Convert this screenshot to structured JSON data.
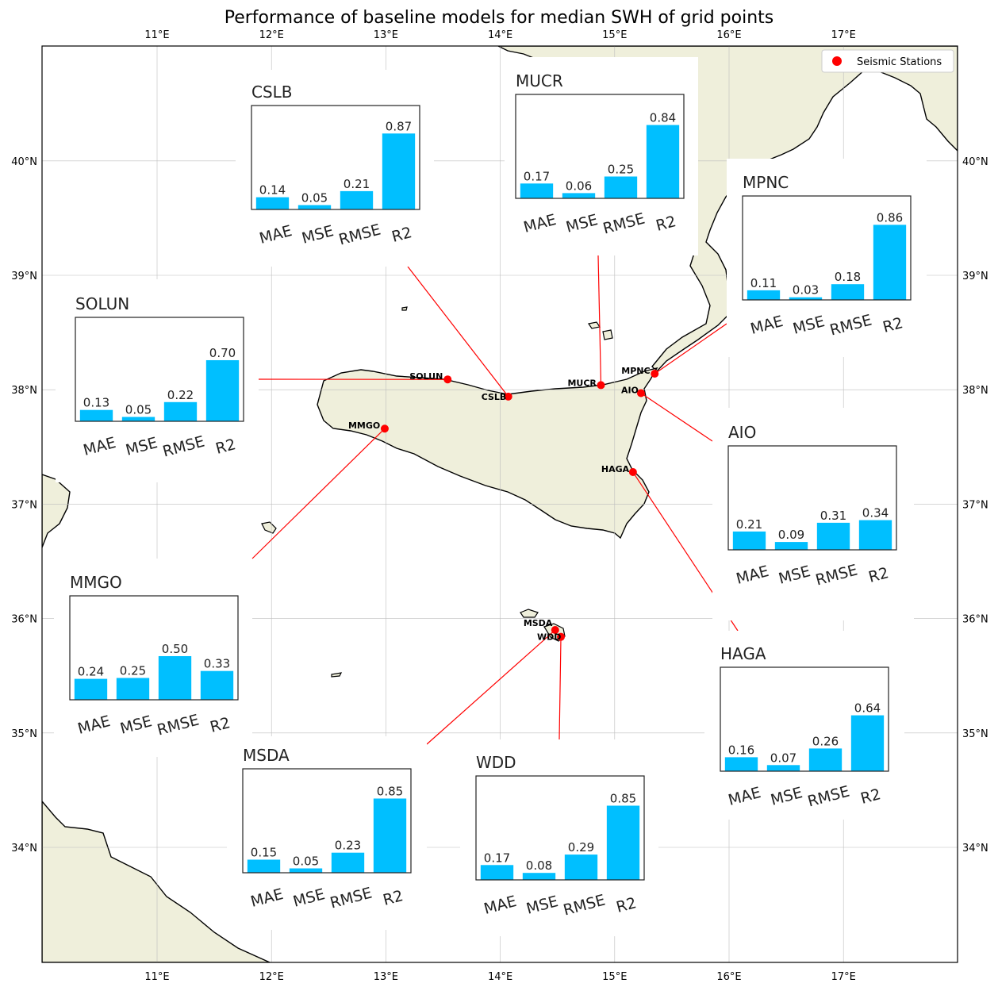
{
  "title": "Performance of baseline models for median SWH of grid points",
  "map": {
    "lon_ticks": [
      "11°E",
      "12°E",
      "13°E",
      "14°E",
      "15°E",
      "16°E",
      "17°E"
    ],
    "lat_ticks": [
      "34°N",
      "35°N",
      "36°N",
      "37°N",
      "38°N",
      "39°N",
      "40°N"
    ],
    "colors": {
      "land": "#efefdb",
      "coast": "#000000",
      "station": "#ff0000",
      "leader": "#ff0000"
    }
  },
  "legend": {
    "label": "Seismic Stations",
    "placement": "top-right"
  },
  "stations": [
    {
      "name": "SOLUN",
      "lon": 13.54,
      "lat": 38.09
    },
    {
      "name": "CSLB",
      "lon": 14.07,
      "lat": 37.94
    },
    {
      "name": "MUCR",
      "lon": 14.88,
      "lat": 38.04
    },
    {
      "name": "MPNC",
      "lon": 15.35,
      "lat": 38.14
    },
    {
      "name": "AIO",
      "lon": 15.23,
      "lat": 37.97
    },
    {
      "name": "MMGO",
      "lon": 12.99,
      "lat": 37.66
    },
    {
      "name": "HAGA",
      "lon": 15.16,
      "lat": 37.28
    },
    {
      "name": "MSDA",
      "lon": 14.48,
      "lat": 35.9
    },
    {
      "name": "WDD",
      "lon": 14.53,
      "lat": 35.84
    }
  ],
  "chart_data": {
    "type": "bar",
    "bar_color": "#00bfff",
    "categories": [
      "MAE",
      "MSE",
      "RMSE",
      "R2"
    ],
    "ylim": [
      0,
      1
    ],
    "panels": [
      {
        "station": "CSLB",
        "values": [
          0.14,
          0.05,
          0.21,
          0.87
        ],
        "labels": [
          "0.14",
          "0.05",
          "0.21",
          "0.87"
        ]
      },
      {
        "station": "MUCR",
        "values": [
          0.17,
          0.06,
          0.25,
          0.84
        ],
        "labels": [
          "0.17",
          "0.06",
          "0.25",
          "0.84"
        ]
      },
      {
        "station": "MPNC",
        "values": [
          0.11,
          0.03,
          0.18,
          0.86
        ],
        "labels": [
          "0.11",
          "0.03",
          "0.18",
          "0.86"
        ]
      },
      {
        "station": "SOLUN",
        "values": [
          0.13,
          0.05,
          0.22,
          0.7
        ],
        "labels": [
          "0.13",
          "0.05",
          "0.22",
          "0.70"
        ]
      },
      {
        "station": "AIO",
        "values": [
          0.21,
          0.09,
          0.31,
          0.34
        ],
        "labels": [
          "0.21",
          "0.09",
          "0.31",
          "0.34"
        ]
      },
      {
        "station": "MMGO",
        "values": [
          0.24,
          0.25,
          0.5,
          0.33
        ],
        "labels": [
          "0.24",
          "0.25",
          "0.50",
          "0.33"
        ]
      },
      {
        "station": "HAGA",
        "values": [
          0.16,
          0.07,
          0.26,
          0.64
        ],
        "labels": [
          "0.16",
          "0.07",
          "0.26",
          "0.64"
        ]
      },
      {
        "station": "MSDA",
        "values": [
          0.15,
          0.05,
          0.23,
          0.85
        ],
        "labels": [
          "0.15",
          "0.05",
          "0.23",
          "0.85"
        ]
      },
      {
        "station": "WDD",
        "values": [
          0.17,
          0.08,
          0.29,
          0.85
        ],
        "labels": [
          "0.17",
          "0.08",
          "0.29",
          "0.85"
        ]
      }
    ]
  }
}
